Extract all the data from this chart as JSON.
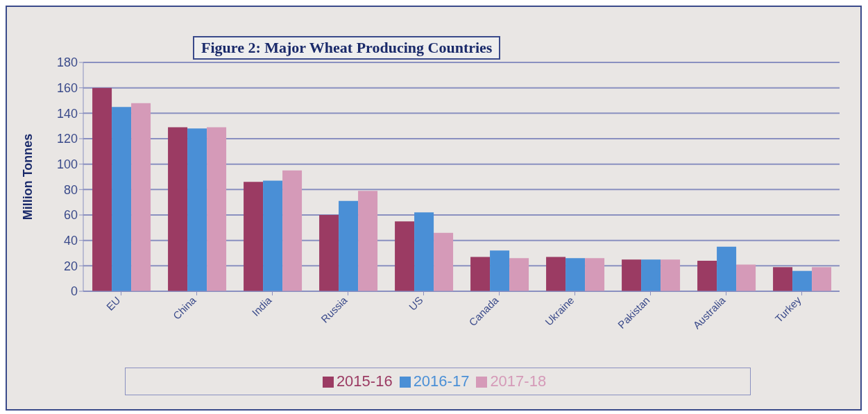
{
  "chart_data": {
    "type": "bar",
    "title": "Figure 2: Major Wheat Producing Countries",
    "ylabel": "Million Tonnes",
    "categories": [
      "EU",
      "China",
      "India",
      "Russia",
      "US",
      "Canada",
      "Ukraine",
      "Pakistan",
      "Australia",
      "Turkey"
    ],
    "series": [
      {
        "name": "2015-16",
        "color": "#9b3b63",
        "values": [
          160,
          129,
          86,
          60,
          55,
          27,
          27,
          25,
          24,
          19
        ]
      },
      {
        "name": "2016-17",
        "color": "#4a8fd6",
        "values": [
          145,
          128,
          87,
          71,
          62,
          32,
          26,
          25,
          35,
          16
        ]
      },
      {
        "name": "2017-18",
        "color": "#d59ab8",
        "values": [
          148,
          129,
          95,
          79,
          46,
          26,
          26,
          25,
          21,
          19
        ]
      }
    ],
    "ylim": [
      0,
      180
    ],
    "yticks": [
      0,
      20,
      40,
      60,
      80,
      100,
      120,
      140,
      160,
      180
    ],
    "grid": "y",
    "legend": "bottom"
  }
}
